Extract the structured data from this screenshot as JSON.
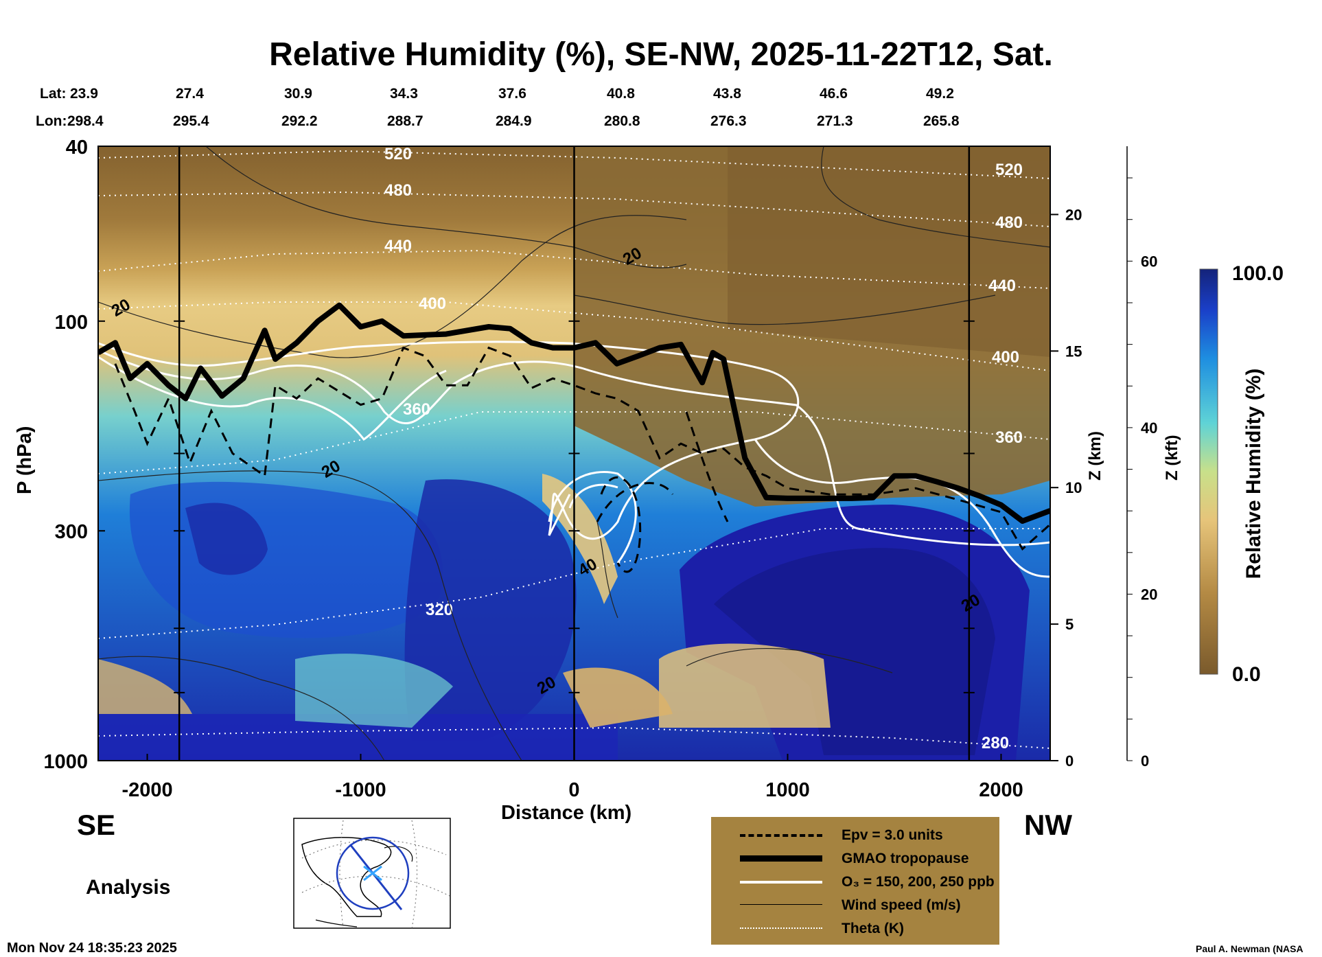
{
  "title": "Relative Humidity (%), SE-NW, 2025-11-22T12, Sat.",
  "lat_label": "Lat:",
  "lon_label": "Lon:",
  "lats": [
    "23.9",
    "27.4",
    "30.9",
    "34.3",
    "37.6",
    "40.8",
    "43.8",
    "46.6",
    "49.2"
  ],
  "lons": [
    "298.4",
    "295.4",
    "292.2",
    "288.7",
    "284.9",
    "280.8",
    "276.3",
    "271.3",
    "265.8"
  ],
  "left_dir": "SE",
  "right_dir": "NW",
  "analysis_label": "Analysis",
  "timestamp": "Mon Nov 24 18:35:23 2025",
  "credit": "Paul A. Newman (NASA",
  "legend": [
    {
      "label": "Epv = 3.0 units",
      "style": "dashed"
    },
    {
      "label": "GMAO tropopause",
      "style": "thick"
    },
    {
      "label": "O₃ = 150, 200, 250 ppb",
      "style": "white"
    },
    {
      "label": "Wind speed (m/s)",
      "style": "thin"
    },
    {
      "label": "Theta (K)",
      "style": "dotted"
    }
  ],
  "colors": {
    "background": "#ffffff",
    "legend_bg": "#a58340",
    "dry": "#7a5a2c",
    "mid": "#e6c47a",
    "moist": "#1a1a9a"
  },
  "chart_data": {
    "type": "heatmap",
    "title": "Relative Humidity (%), SE-NW, 2025-11-22T12, Sat.",
    "xlabel": "Distance (km)",
    "ylabel": "P (hPa)",
    "right_label_km": "Z (km)",
    "right_label_kft": "Z (kft)",
    "xlim": [
      -2230,
      2230
    ],
    "ylim": [
      1000,
      40
    ],
    "y_scale": "log",
    "x_ticks": [
      -2000,
      -1000,
      0,
      1000,
      2000
    ],
    "y_ticks": [
      40,
      100,
      300,
      1000
    ],
    "z_km_ticks": [
      0,
      5,
      10,
      15,
      20
    ],
    "z_kft_ticks": [
      0,
      20,
      40,
      60
    ],
    "colorbar": {
      "label": "Relative Humidity (%)",
      "min": 0.0,
      "max": 100.0,
      "min_label": "0.0",
      "max_label": "100.0"
    },
    "vertical_markers_km": [
      -1850,
      0,
      1850
    ],
    "tropopause": {
      "x": [
        -2230,
        -2150,
        -2080,
        -2000,
        -1900,
        -1820,
        -1750,
        -1650,
        -1550,
        -1450,
        -1400,
        -1300,
        -1200,
        -1100,
        -1000,
        -900,
        -800,
        -600,
        -400,
        -300,
        -200,
        -100,
        0,
        100,
        200,
        300,
        400,
        500,
        600,
        650,
        700,
        800,
        900,
        1000,
        1100,
        1200,
        1300,
        1400,
        1500,
        1600,
        1700,
        1800,
        1900,
        2000,
        2100,
        2230
      ],
      "p": [
        118,
        112,
        135,
        125,
        140,
        150,
        128,
        148,
        135,
        105,
        122,
        112,
        100,
        92,
        103,
        100,
        108,
        107,
        103,
        104,
        112,
        115,
        115,
        112,
        125,
        120,
        115,
        113,
        138,
        118,
        122,
        205,
        252,
        253,
        253,
        253,
        253,
        252,
        225,
        225,
        232,
        240,
        250,
        262,
        285,
        270
      ]
    },
    "epv_contour": {
      "x": [
        -2150,
        -2060,
        -2000,
        -1900,
        -1800,
        -1700,
        -1600,
        -1450,
        -1400,
        -1300,
        -1200,
        -1000,
        -900,
        -800,
        -700,
        -600,
        -500,
        -400,
        -300,
        -200,
        -100,
        0,
        100,
        200,
        300,
        400,
        500,
        600,
        700,
        800,
        900,
        1000,
        1200,
        1400,
        1600,
        1800,
        2000,
        2100,
        2230
      ],
      "p": [
        125,
        160,
        190,
        150,
        210,
        160,
        200,
        225,
        140,
        150,
        135,
        155,
        150,
        115,
        120,
        140,
        140,
        115,
        120,
        142,
        135,
        140,
        146,
        150,
        160,
        205,
        190,
        200,
        195,
        215,
        225,
        240,
        248,
        248,
        240,
        255,
        272,
        330,
        290
      ]
    },
    "theta_levels_K": [
      280,
      320,
      360,
      400,
      440,
      480,
      520
    ],
    "wind_speed_levels": [
      20,
      40
    ],
    "ozone_ppb": [
      150,
      200,
      250
    ]
  }
}
